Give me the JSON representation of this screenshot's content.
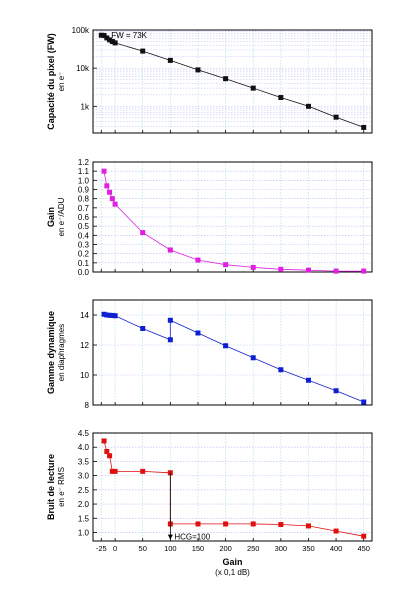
{
  "chart_data": [
    {
      "type": "scatter",
      "ylabel": "Capacité du pixel (FW)",
      "ylabel_sub": "en e⁻",
      "yscale": "log",
      "ylim": [
        200,
        100000
      ],
      "yticks": [
        {
          "v": 1000,
          "label": "1k"
        },
        {
          "v": 10000,
          "label": "10k"
        },
        {
          "v": 100000,
          "label": "100k"
        }
      ],
      "annotation": "FW = 73K",
      "color": "#111111",
      "series": [
        {
          "x": [
            -25,
            -20,
            -15,
            -10,
            -5,
            0,
            50,
            100,
            150,
            200,
            250,
            300,
            350,
            400,
            450
          ],
          "y": [
            73000,
            72000,
            62000,
            55000,
            50000,
            46000,
            28000,
            16000,
            9000,
            5300,
            3000,
            1700,
            1000,
            520,
            280
          ]
        }
      ]
    },
    {
      "type": "scatter",
      "ylabel": "Gain",
      "ylabel_sub": "en e⁻/ADU",
      "ylim": [
        0,
        1.2
      ],
      "yticks": [
        {
          "v": 0.0,
          "label": "0.0"
        },
        {
          "v": 0.1,
          "label": "0.1"
        },
        {
          "v": 0.2,
          "label": "0.2"
        },
        {
          "v": 0.3,
          "label": "0.3"
        },
        {
          "v": 0.4,
          "label": "0.4"
        },
        {
          "v": 0.5,
          "label": "0.5"
        },
        {
          "v": 0.6,
          "label": "0.6"
        },
        {
          "v": 0.7,
          "label": "0.7"
        },
        {
          "v": 0.8,
          "label": "0.8"
        },
        {
          "v": 0.9,
          "label": "0.9"
        },
        {
          "v": 1.0,
          "label": "1.0"
        },
        {
          "v": 1.1,
          "label": "1.1"
        },
        {
          "v": 1.2,
          "label": "1.2"
        }
      ],
      "color": "#e020e0",
      "series": [
        {
          "x": [
            -20,
            -15,
            -10,
            -5,
            0,
            50,
            100,
            150,
            200,
            250,
            300,
            350,
            400,
            450
          ],
          "y": [
            1.1,
            0.94,
            0.87,
            0.8,
            0.74,
            0.43,
            0.24,
            0.13,
            0.08,
            0.05,
            0.03,
            0.02,
            0.01,
            0.01
          ]
        }
      ]
    },
    {
      "type": "scatter",
      "ylabel": "Gamme dynamique",
      "ylabel_sub": "en diaphragmes",
      "ylim": [
        8,
        15
      ],
      "yticks": [
        {
          "v": 8,
          "label": "8"
        },
        {
          "v": 10,
          "label": "10"
        },
        {
          "v": 12,
          "label": "12"
        },
        {
          "v": 14,
          "label": "14"
        }
      ],
      "color": "#1020d0",
      "series": [
        {
          "x": [
            -20,
            -15,
            -10,
            -5,
            0,
            50,
            100,
            100,
            150,
            200,
            250,
            300,
            350,
            400,
            450
          ],
          "y": [
            14.05,
            14.0,
            13.98,
            13.97,
            13.95,
            13.1,
            12.35,
            13.65,
            12.8,
            11.95,
            11.15,
            10.35,
            9.65,
            8.95,
            8.2
          ]
        }
      ]
    },
    {
      "type": "scatter",
      "ylabel": "Bruit de lecture",
      "ylabel_sub": "en e⁻ RMS",
      "ylim": [
        0.7,
        4.5
      ],
      "yticks": [
        {
          "v": 1.0,
          "label": "1.0"
        },
        {
          "v": 1.5,
          "label": "1.5"
        },
        {
          "v": 2.0,
          "label": "2.0"
        },
        {
          "v": 2.5,
          "label": "2.5"
        },
        {
          "v": 3.0,
          "label": "3.0"
        },
        {
          "v": 3.5,
          "label": "3.5"
        },
        {
          "v": 4.0,
          "label": "4.0"
        },
        {
          "v": 4.5,
          "label": "4.5"
        }
      ],
      "annotation": "HCG=100",
      "color": "#e01010",
      "series": [
        {
          "x": [
            -20,
            -15,
            -10,
            -5,
            0,
            50,
            100,
            100,
            150,
            200,
            250,
            300,
            350,
            400,
            450
          ],
          "y": [
            4.22,
            3.85,
            3.7,
            3.15,
            3.15,
            3.15,
            3.1,
            1.3,
            1.3,
            1.3,
            1.3,
            1.28,
            1.23,
            1.05,
            0.87
          ]
        }
      ]
    }
  ],
  "xaxis": {
    "label": "Gain",
    "sublabel": "(x 0,1 dB)",
    "xlim": [
      -40,
      465
    ],
    "ticks": [
      {
        "v": -25,
        "label": "-25"
      },
      {
        "v": 0,
        "label": "0"
      },
      {
        "v": 50,
        "label": "50"
      },
      {
        "v": 100,
        "label": "100"
      },
      {
        "v": 150,
        "label": "150"
      },
      {
        "v": 200,
        "label": "200"
      },
      {
        "v": 250,
        "label": "250"
      },
      {
        "v": 300,
        "label": "300"
      },
      {
        "v": 350,
        "label": "350"
      },
      {
        "v": 400,
        "label": "400"
      },
      {
        "v": 450,
        "label": "450"
      }
    ]
  },
  "grid": true
}
